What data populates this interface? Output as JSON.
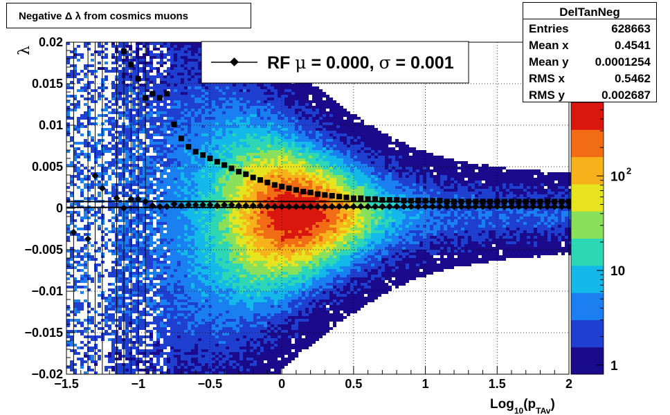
{
  "title": "Negative Δ λ from cosmics muons",
  "stats": {
    "name": "DelTanNeg",
    "rows": [
      {
        "label": "Entries",
        "value": "628663"
      },
      {
        "label": "Mean x",
        "value": "0.4541"
      },
      {
        "label": "Mean y",
        "value": "0.0001254"
      },
      {
        "label": "RMS x",
        "value": "0.5462"
      },
      {
        "label": "RMS y",
        "value": "0.002687"
      }
    ]
  },
  "legend": {
    "label_prefix": "RF",
    "mu_symbol": "μ",
    "mu_text": " =  0.000, ",
    "sigma_symbol": "σ",
    "sigma_text": " =   0.001"
  },
  "colors": {
    "palette": [
      "#1b0a8c",
      "#1e3fd0",
      "#1a7ff0",
      "#13b9e8",
      "#2dd7b5",
      "#8be05b",
      "#e6e31f",
      "#f7b11a",
      "#f26c16",
      "#d9170f"
    ],
    "marker": "#000000",
    "grid": "#000000"
  },
  "chart_data": {
    "type": "heatmap",
    "xlabel": "Log",
    "xlabel_sub": "10",
    "xlabel_var": "(p",
    "xlabel_var_sub": "TAv",
    "xlabel_close": ")",
    "ylabel": "λ",
    "xlim": [
      -1.5,
      2.0
    ],
    "ylim": [
      -0.02,
      0.02
    ],
    "x_ticks": [
      "−1.5",
      "−1",
      "−0.5",
      "0",
      "0.5",
      "1",
      "1.5",
      "2"
    ],
    "x_tick_values": [
      -1.5,
      -1,
      -0.5,
      0,
      0.5,
      1,
      1.5,
      2
    ],
    "y_ticks": [
      "−0.02",
      "−0.015",
      "−0.01",
      "−0.005",
      "0",
      "0.005",
      "0.01",
      "0.015",
      "0.02"
    ],
    "y_tick_values": [
      -0.02,
      -0.015,
      -0.01,
      -0.005,
      0,
      0.005,
      0.01,
      0.015,
      0.02
    ],
    "z_scale": "log",
    "z_range": [
      0.8,
      600
    ],
    "z_ticks": [
      "1",
      "10",
      "10"
    ],
    "z_tick_exponents": [
      "",
      "",
      "2"
    ],
    "z_tick_values": [
      1,
      10,
      100
    ],
    "grid": true,
    "series": [
      {
        "name": "sigma",
        "marker": "square",
        "x": [
          -1.1,
          -1.05,
          -1.0,
          -0.95,
          -0.9,
          -0.85,
          -0.8,
          -0.75,
          -0.7,
          -0.65,
          -0.6,
          -0.55,
          -0.5,
          -0.45,
          -0.4,
          -0.35,
          -0.3,
          -0.25,
          -0.2,
          -0.15,
          -0.1,
          -0.05,
          0.0,
          0.05,
          0.1,
          0.15,
          0.2,
          0.25,
          0.3,
          0.35,
          0.4,
          0.45,
          0.5,
          0.55,
          0.6,
          0.65,
          0.7,
          0.75,
          0.8,
          0.85,
          0.9,
          0.95,
          1.0,
          1.05,
          1.1,
          1.15,
          1.2,
          1.25,
          1.3,
          1.35,
          1.4,
          1.45,
          1.5,
          1.55,
          1.6,
          1.65,
          1.7,
          1.75,
          1.8,
          1.85,
          1.9,
          1.95,
          2.0
        ],
        "y": [
          0.0189,
          0.0173,
          0.0156,
          0.0133,
          0.0138,
          0.0133,
          0.0138,
          0.0101,
          0.0084,
          0.0074,
          0.0068,
          0.0064,
          0.006,
          0.0056,
          0.0052,
          0.0048,
          0.0044,
          0.0041,
          0.0037,
          0.0034,
          0.0031,
          0.0028,
          0.0026,
          0.0024,
          0.0022,
          0.002,
          0.0019,
          0.0017,
          0.0016,
          0.0015,
          0.0014,
          0.0013,
          0.0012,
          0.0012,
          0.0011,
          0.0011,
          0.001,
          0.001,
          0.001,
          0.0009,
          0.0009,
          0.0009,
          0.0009,
          0.0009,
          0.0009,
          0.0008,
          0.0008,
          0.0008,
          0.0008,
          0.0008,
          0.0008,
          0.0008,
          0.0008,
          0.0008,
          0.0008,
          0.0008,
          0.0008,
          0.0008,
          0.0008,
          0.0008,
          0.0008,
          0.0008,
          0.0008
        ]
      },
      {
        "name": "mu",
        "marker": "diamond",
        "x": [
          -1.45,
          -1.35,
          -1.3,
          -1.25,
          -1.15,
          -1.1,
          -1.05,
          -1.0,
          -0.95,
          -0.9,
          -0.85,
          -0.8,
          -0.75,
          -0.7,
          -0.65,
          -0.6,
          -0.55,
          -0.5,
          -0.45,
          -0.4,
          -0.35,
          -0.3,
          -0.25,
          -0.2,
          -0.15,
          -0.1,
          -0.05,
          0.0,
          0.05,
          0.1,
          0.15,
          0.2,
          0.25,
          0.3,
          0.35,
          0.4,
          0.45,
          0.5,
          0.55,
          0.6,
          0.65,
          0.7,
          0.75,
          0.8,
          0.85,
          0.9,
          0.95,
          1.0,
          1.05,
          1.1,
          1.15,
          1.2,
          1.25,
          1.3,
          1.35,
          1.4,
          1.45,
          1.5,
          1.55,
          1.6,
          1.65,
          1.7,
          1.75,
          1.8,
          1.85,
          1.9,
          1.95,
          2.0
        ],
        "y": [
          -0.0029,
          -0.0037,
          0.0039,
          0.0024,
          0.0012,
          0.0,
          0.0011,
          0.0011,
          0.0008,
          0.0003,
          0.0002,
          0.0002,
          0.0005,
          0.0003,
          0.0004,
          0.0004,
          0.0004,
          0.0004,
          0.0003,
          0.0004,
          0.0004,
          0.0003,
          0.0003,
          0.0003,
          0.0003,
          0.0002,
          0.0002,
          0.0002,
          0.0002,
          0.0002,
          0.0002,
          0.0002,
          0.0002,
          0.0002,
          0.0002,
          0.0002,
          0.0002,
          0.0002,
          0.0002,
          0.0002,
          0.0002,
          0.0002,
          0.0002,
          0.0002,
          0.0002,
          0.0002,
          0.0002,
          0.0002,
          0.0002,
          0.0002,
          0.0002,
          0.0002,
          0.0002,
          0.0002,
          0.0002,
          0.0002,
          0.0002,
          0.0002,
          0.0002,
          0.0002,
          0.0002,
          0.0002,
          0.0002,
          0.0002,
          0.0002,
          0.0002,
          0.0002,
          0.0002
        ]
      }
    ],
    "reference_lines_y": [
      0.0008,
      0.0001
    ]
  }
}
